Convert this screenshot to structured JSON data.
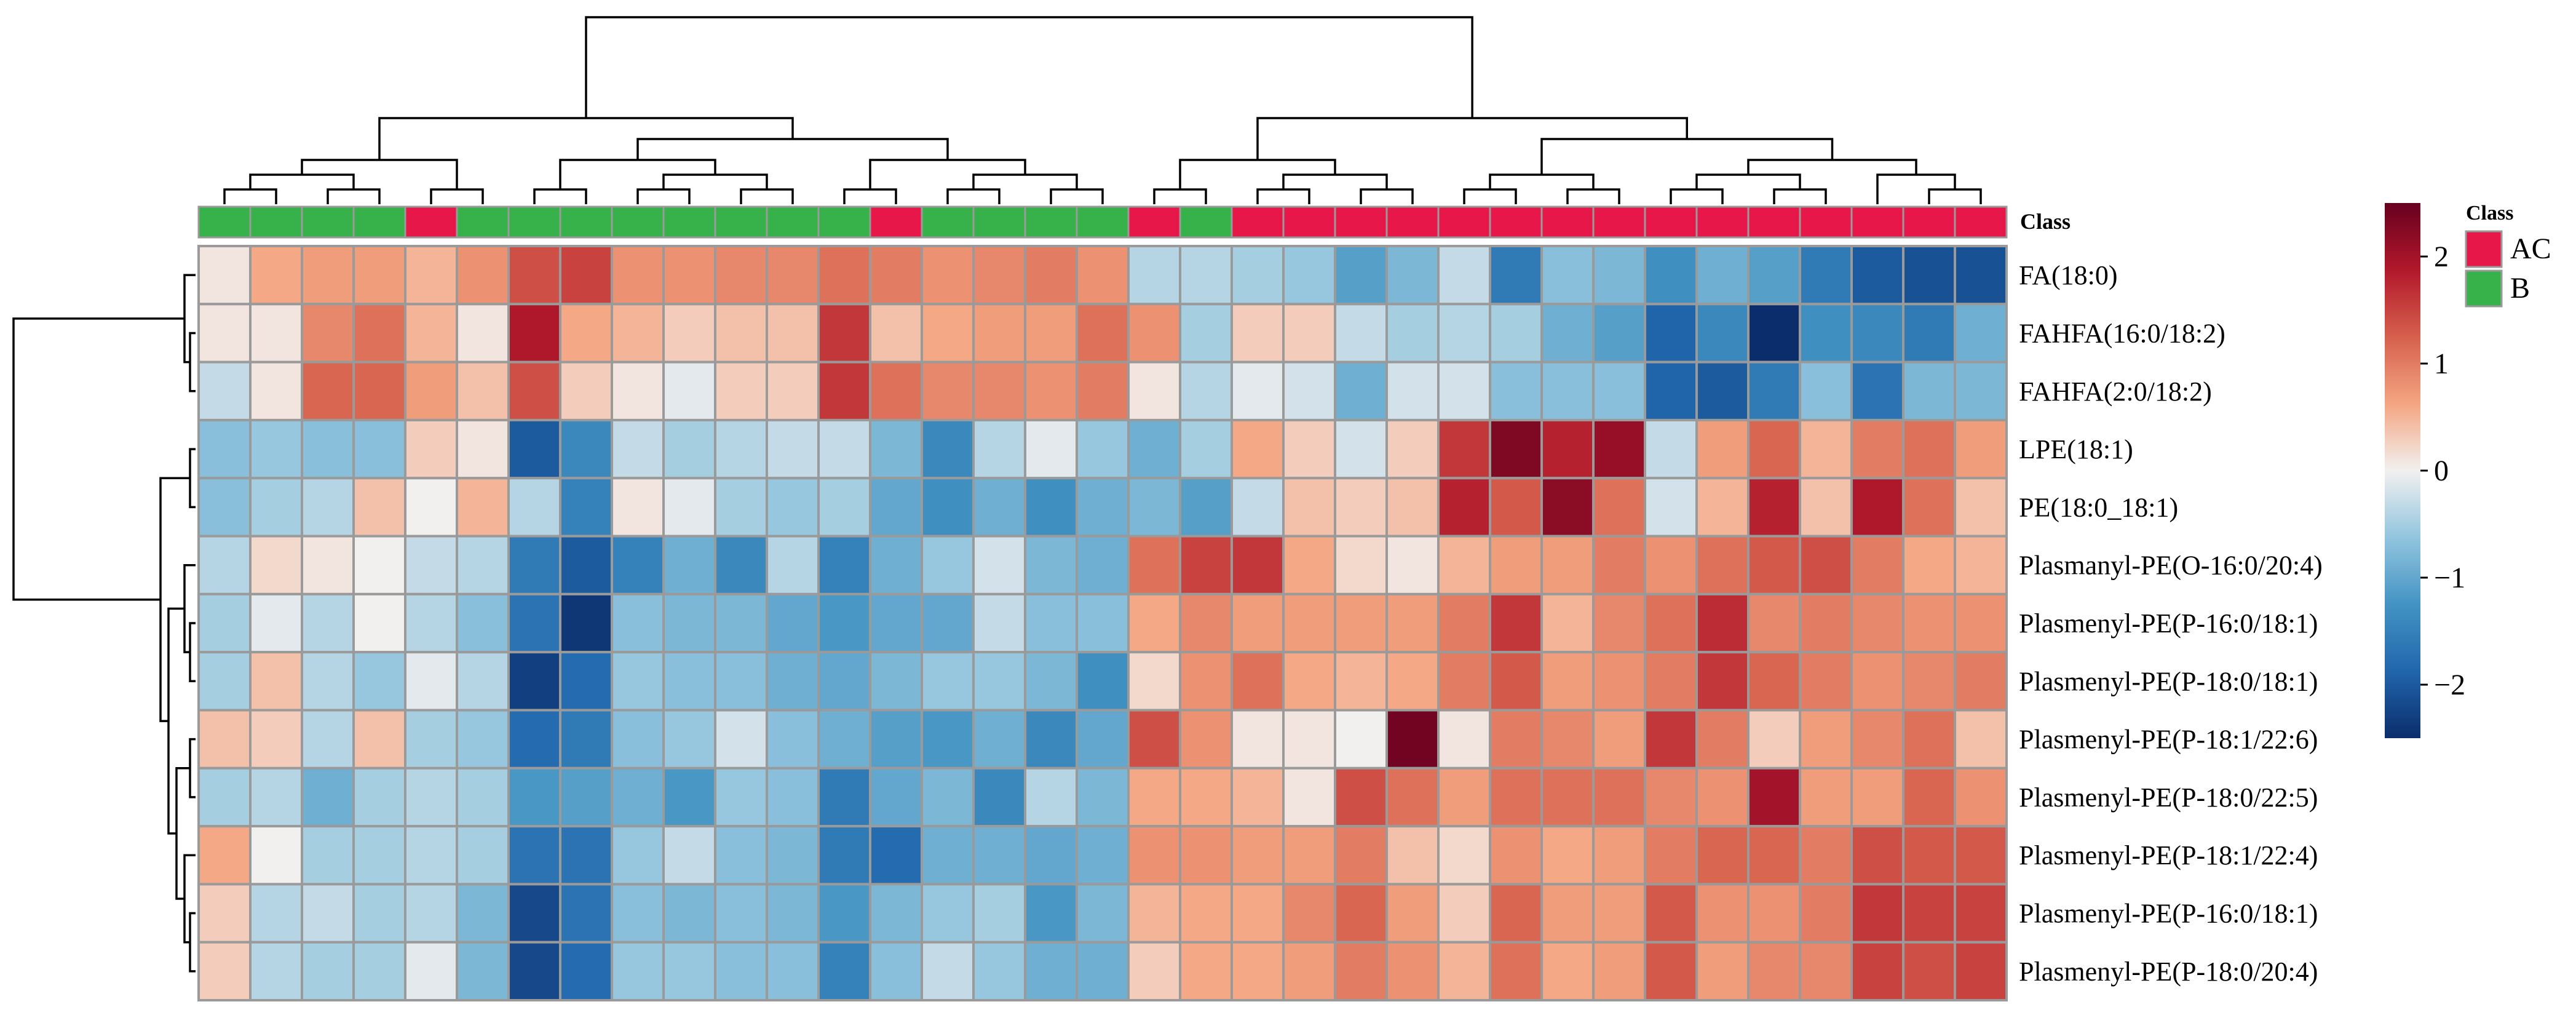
{
  "chart_data": {
    "type": "heatmap",
    "title": "",
    "class_annotation_label": "Class",
    "legend": {
      "title": "Class",
      "entries": [
        {
          "label": "AC",
          "color": "#E8174A"
        },
        {
          "label": "B",
          "color": "#37B24A"
        }
      ]
    },
    "color_scale": {
      "range": [
        -2.5,
        2.5
      ],
      "ticks": [
        2,
        1,
        0,
        -1,
        -2
      ],
      "tick_labels": [
        "2",
        "1",
        "0",
        "−1",
        "−2"
      ],
      "colors": [
        "#0B2D6B",
        "#2166AC",
        "#4393C3",
        "#92C5DE",
        "#F2F0EF",
        "#F4A582",
        "#D6604D",
        "#B2182B",
        "#67001F"
      ]
    },
    "class_colors": {
      "AC": "#E8174A",
      "B": "#37B24A"
    },
    "grid_color": "#9A9A9A",
    "columns_class": [
      "B",
      "B",
      "B",
      "B",
      "AC",
      "B",
      "B",
      "B",
      "B",
      "B",
      "B",
      "B",
      "B",
      "AC",
      "B",
      "B",
      "B",
      "B",
      "AC",
      "B",
      "AC",
      "AC",
      "AC",
      "AC",
      "AC",
      "AC",
      "AC",
      "AC",
      "AC",
      "AC",
      "AC",
      "AC",
      "AC",
      "AC",
      "AC"
    ],
    "rows": [
      "FA(18:0)",
      "FAHFA(16:0/18:2)",
      "FAHFA(2:0/18:2)",
      "LPE(18:1)",
      "PE(18:0_18:1)",
      "Plasmanyl-PE(O-16:0/20:4)",
      "Plasmenyl-PE(P-16:0/18:1)",
      "Plasmenyl-PE(P-18:0/18:1)",
      "Plasmenyl-PE(P-18:1/22:6)",
      "Plasmenyl-PE(P-18:0/22:5)",
      "Plasmenyl-PE(P-18:1/22:4)",
      "Plasmenyl-PE(P-16:0/18:1)",
      "Plasmenyl-PE(P-18:0/20:4)"
    ],
    "values": [
      [
        0.1,
        0.6,
        0.7,
        0.7,
        0.5,
        0.8,
        1.4,
        1.5,
        0.8,
        0.8,
        0.9,
        0.9,
        1.1,
        1.0,
        0.8,
        0.9,
        1.0,
        0.8,
        -0.4,
        -0.4,
        -0.5,
        -0.6,
        -1.1,
        -0.8,
        -0.3,
        -1.6,
        -0.7,
        -0.8,
        -1.3,
        -0.9,
        -1.1,
        -1.6,
        -2.0,
        -2.1,
        -2.1
      ],
      [
        0.1,
        0.1,
        0.9,
        1.1,
        0.5,
        0.1,
        1.9,
        0.6,
        0.5,
        0.3,
        0.4,
        0.4,
        1.6,
        0.4,
        0.6,
        0.7,
        0.7,
        1.1,
        0.8,
        -0.5,
        0.3,
        0.3,
        -0.3,
        -0.5,
        -0.4,
        -0.5,
        -0.9,
        -1.1,
        -1.9,
        -1.4,
        -2.6,
        -1.3,
        -1.4,
        -1.6,
        -0.9
      ],
      [
        -0.3,
        0.1,
        1.2,
        1.2,
        0.7,
        0.4,
        1.4,
        0.3,
        0.1,
        -0.1,
        0.3,
        0.3,
        1.6,
        1.1,
        0.9,
        0.9,
        0.8,
        1.0,
        0.1,
        -0.4,
        -0.1,
        -0.2,
        -0.9,
        -0.2,
        -0.2,
        -0.7,
        -0.7,
        -0.7,
        -1.9,
        -2.0,
        -1.6,
        -0.7,
        -1.7,
        -0.8,
        -0.8
      ],
      [
        -0.7,
        -0.6,
        -0.7,
        -0.7,
        0.3,
        0.1,
        -2.0,
        -1.4,
        -0.3,
        -0.5,
        -0.4,
        -0.3,
        -0.3,
        -0.8,
        -1.4,
        -0.4,
        -0.1,
        -0.6,
        -0.9,
        -0.5,
        0.6,
        0.3,
        -0.2,
        0.3,
        1.6,
        2.3,
        1.8,
        2.1,
        -0.3,
        0.7,
        1.2,
        0.5,
        1.0,
        1.1,
        0.7
      ],
      [
        -0.7,
        -0.5,
        -0.4,
        0.4,
        0.0,
        0.5,
        -0.4,
        -1.5,
        0.1,
        -0.1,
        -0.5,
        -0.6,
        -0.5,
        -1.0,
        -1.3,
        -0.9,
        -1.3,
        -0.9,
        -0.8,
        -1.1,
        -0.3,
        0.4,
        0.3,
        0.4,
        1.8,
        1.3,
        2.2,
        1.1,
        -0.2,
        0.5,
        1.8,
        0.4,
        1.9,
        1.1,
        0.4
      ],
      [
        -0.4,
        0.2,
        0.1,
        0.0,
        -0.3,
        -0.4,
        -1.6,
        -2.0,
        -1.5,
        -0.9,
        -1.4,
        -0.4,
        -1.5,
        -0.9,
        -0.6,
        -0.2,
        -0.8,
        -0.9,
        1.1,
        1.5,
        1.6,
        0.6,
        0.2,
        0.1,
        0.5,
        0.7,
        0.7,
        1.0,
        0.8,
        1.1,
        1.3,
        1.4,
        1.0,
        0.6,
        0.5
      ],
      [
        -0.5,
        -0.1,
        -0.4,
        0.0,
        -0.4,
        -0.7,
        -1.7,
        -2.4,
        -0.7,
        -0.8,
        -0.8,
        -1.0,
        -1.2,
        -1.0,
        -1.0,
        -0.3,
        -0.7,
        -0.7,
        0.6,
        0.9,
        0.7,
        0.7,
        0.7,
        0.7,
        1.0,
        1.6,
        0.5,
        0.9,
        1.1,
        1.7,
        0.9,
        1.0,
        0.9,
        0.8,
        0.8
      ],
      [
        -0.5,
        0.4,
        -0.4,
        -0.6,
        -0.1,
        -0.4,
        -2.3,
        -1.8,
        -0.6,
        -0.7,
        -0.7,
        -0.9,
        -1.0,
        -0.8,
        -0.6,
        -0.6,
        -0.8,
        -1.3,
        0.2,
        0.8,
        1.1,
        0.6,
        0.5,
        0.6,
        1.0,
        1.3,
        0.7,
        0.8,
        1.0,
        1.6,
        1.2,
        1.0,
        0.8,
        0.9,
        1.0
      ],
      [
        0.4,
        0.3,
        -0.4,
        0.4,
        -0.5,
        -0.6,
        -1.8,
        -1.6,
        -0.7,
        -0.6,
        -0.2,
        -0.7,
        -0.9,
        -1.1,
        -1.2,
        -0.9,
        -1.4,
        -1.0,
        1.4,
        0.8,
        0.1,
        0.1,
        0.0,
        2.4,
        0.1,
        1.0,
        0.9,
        0.7,
        1.6,
        1.0,
        0.3,
        0.7,
        0.9,
        1.1,
        0.4
      ],
      [
        -0.5,
        -0.4,
        -0.9,
        -0.5,
        -0.4,
        -0.5,
        -1.2,
        -1.1,
        -0.9,
        -1.2,
        -0.6,
        -0.7,
        -1.6,
        -1.0,
        -0.8,
        -1.4,
        -0.4,
        -0.8,
        0.6,
        0.6,
        0.5,
        0.1,
        1.4,
        1.1,
        0.7,
        1.1,
        1.1,
        1.1,
        0.9,
        0.8,
        2.0,
        0.7,
        0.7,
        1.2,
        0.8
      ],
      [
        0.6,
        0.0,
        -0.5,
        -0.5,
        -0.4,
        -0.5,
        -1.7,
        -1.7,
        -0.6,
        -0.3,
        -0.7,
        -0.8,
        -1.6,
        -1.8,
        -0.9,
        -0.9,
        -1.0,
        -0.9,
        0.8,
        0.8,
        0.7,
        0.7,
        1.0,
        0.4,
        0.2,
        0.8,
        0.6,
        0.7,
        1.0,
        1.2,
        1.2,
        1.0,
        1.4,
        1.3,
        1.3
      ],
      [
        0.3,
        -0.4,
        -0.3,
        -0.5,
        -0.4,
        -0.8,
        -2.2,
        -1.7,
        -0.7,
        -0.8,
        -0.7,
        -0.8,
        -1.2,
        -0.8,
        -0.6,
        -0.5,
        -1.2,
        -0.8,
        0.5,
        0.6,
        0.6,
        0.9,
        1.2,
        0.7,
        0.3,
        1.2,
        0.7,
        0.7,
        1.3,
        0.8,
        0.8,
        1.0,
        1.6,
        1.5,
        1.5
      ],
      [
        0.3,
        -0.4,
        -0.5,
        -0.5,
        -0.1,
        -0.8,
        -2.2,
        -1.8,
        -0.6,
        -0.6,
        -0.7,
        -0.7,
        -1.5,
        -0.7,
        -0.3,
        -0.6,
        -0.9,
        -0.9,
        0.3,
        0.6,
        0.6,
        0.7,
        1.0,
        0.8,
        0.5,
        1.1,
        0.6,
        0.7,
        1.3,
        0.7,
        0.9,
        0.9,
        1.5,
        1.4,
        1.5
      ]
    ]
  }
}
